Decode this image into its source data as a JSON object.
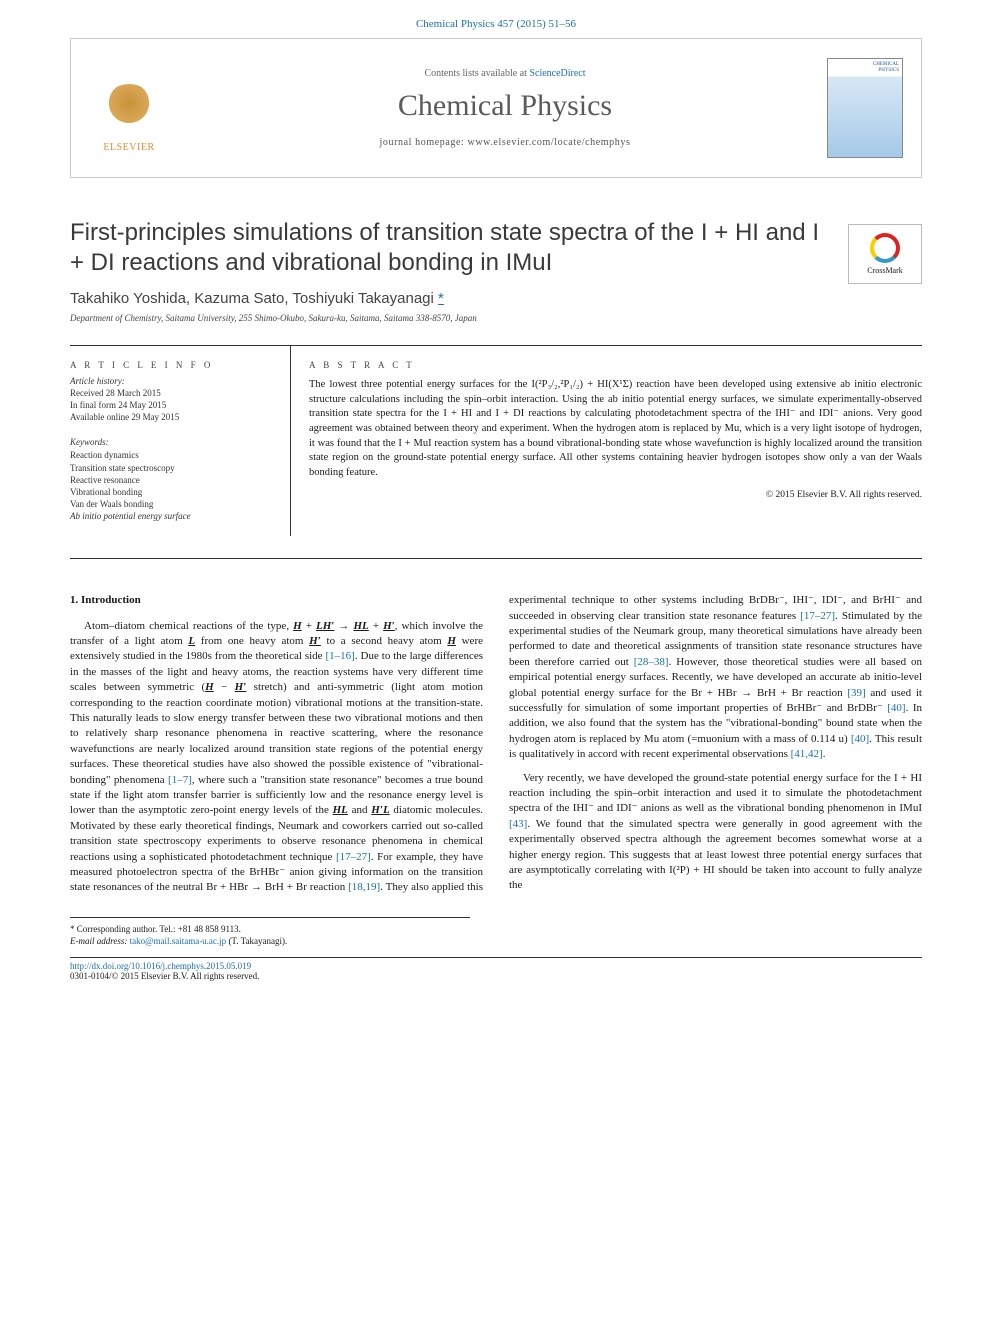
{
  "header": {
    "citation": "Chemical Physics 457 (2015) 51–56",
    "contents_avail": "Contents lists available at ",
    "sciencedirect": "ScienceDirect",
    "journal_name": "Chemical Physics",
    "homepage_label": "journal homepage: ",
    "homepage_url": "www.elsevier.com/locate/chemphys",
    "publisher": "ELSEVIER"
  },
  "article": {
    "title": "First-principles simulations of transition state spectra of the I + HI and I + DI reactions and vibrational bonding in IMuI",
    "crossmark": "CrossMark",
    "authors": "Takahiko Yoshida, Kazuma Sato, Toshiyuki Takayanagi ",
    "corr_mark": "*",
    "affiliation": "Department of Chemistry, Saitama University, 255 Shimo-Okubo, Sakura-ku, Saitama, Saitama 338-8570, Japan"
  },
  "info": {
    "heading": "A R T I C L E   I N F O",
    "history_label": "Article history:",
    "received": "Received 28 March 2015",
    "final": "In final form 24 May 2015",
    "online": "Available online 29 May 2015",
    "keywords_label": "Keywords:",
    "keywords": [
      "Reaction dynamics",
      "Transition state spectroscopy",
      "Reactive resonance",
      "Vibrational bonding",
      "Van der Waals bonding",
      "Ab initio potential energy surface"
    ]
  },
  "abstract": {
    "heading": "A B S T R A C T",
    "text": "The lowest three potential energy surfaces for the I(²P₃/₂,²P₁/₂) + HI(X¹Σ) reaction have been developed using extensive ab initio electronic structure calculations including the spin–orbit interaction. Using the ab initio potential energy surfaces, we simulate experimentally-observed transition state spectra for the I + HI and I + DI reactions by calculating photodetachment spectra of the IHI⁻ and IDI⁻ anions. Very good agreement was obtained between theory and experiment. When the hydrogen atom is replaced by Mu, which is a very light isotope of hydrogen, it was found that the I + MuI reaction system has a bound vibrational-bonding state whose wavefunction is highly localized around the transition state region on the ground-state potential energy surface. All other systems containing heavier hydrogen isotopes show only a van der Waals bonding feature.",
    "copyright": "© 2015 Elsevier B.V. All rights reserved."
  },
  "intro": {
    "heading": "1. Introduction",
    "para1_a": "Atom–diatom chemical reactions of the type, ",
    "para1_b": ", which involve the transfer of a light atom ",
    "para1_c": " from one heavy atom ",
    "para1_d": " to a second heavy atom ",
    "para1_e": " were extensively studied in the 1980s from the theoretical side ",
    "ref1": "[1–16]",
    "para1_f": ". Due to the large differences in the masses of the light and heavy atoms, the reaction systems have very different time scales between symmetric (",
    "para1_g": " stretch) and anti-symmetric (light atom motion corresponding to the reaction coordinate motion) vibrational motions at the transition-state. This naturally leads to slow energy transfer between these two vibrational motions and then to relatively sharp resonance phenomena in reactive scattering, where the resonance wavefunctions are nearly localized around transition state regions of the potential energy surfaces. These theoretical studies have also showed the possible existence of \"vibrational-bonding\" phenomena ",
    "ref2": "[1–7]",
    "para1_h": ", where such a \"transition state resonance\" becomes a true bound state if the light atom transfer barrier is sufficiently low and the resonance energy level is lower than the asymptotic zero-point energy levels of the ",
    "para1_i": " and ",
    "para1_j": " diatomic molecules. Motivated by these early theoretical findings, Neumark and coworkers carried out so-called transition state spectroscopy experiments to observe resonance phenomena in chemical reactions using a sophisticated photodetachment technique ",
    "ref3": "[17–27]",
    "para1_k": ". For example, they have measured photoelectron spectra of the ",
    "para2_a": "BrHBr⁻ anion giving information on the transition state resonances of the neutral Br + HBr → BrH + Br reaction ",
    "ref4": "[18,19]",
    "para2_b": ". They also applied this experimental technique to other systems including BrDBr⁻, IHI⁻, IDI⁻, and BrHI⁻ and succeeded in observing clear transition state resonance features ",
    "ref5": "[17–27]",
    "para2_c": ". Stimulated by the experimental studies of the Neumark group, many theoretical simulations have already been performed to date and theoretical assignments of transition state resonance structures have been therefore carried out ",
    "ref6": "[28–38]",
    "para2_d": ". However, those theoretical studies were all based on empirical potential energy surfaces. Recently, we have developed an accurate ab initio-level global potential energy surface for the Br + HBr → BrH + Br reaction ",
    "ref7": "[39]",
    "para2_e": " and used it successfully for simulation of some important properties of BrHBr⁻ and BrDBr⁻ ",
    "ref8": "[40]",
    "para2_f": ". In addition, we also found that the system has the \"vibrational-bonding\" bound state when the hydrogen atom is replaced by Mu atom (=muonium with a mass of 0.114 u) ",
    "ref9": "[40]",
    "para2_g": ". This result is qualitatively in accord with recent experimental observations ",
    "ref10": "[41,42]",
    "para2_h": ".",
    "para3_a": "Very recently, we have developed the ground-state potential energy surface for the I + HI reaction including the spin–orbit interaction and used it to simulate the photodetachment spectra of the IHI⁻ and IDI⁻ anions as well as the vibrational bonding phenomenon in IMuI ",
    "ref11": "[43]",
    "para3_b": ". We found that the simulated spectra were generally in good agreement with the experimentally observed spectra although the agreement becomes somewhat worse at a higher energy region. This suggests that at least lowest three potential energy surfaces that are asymptotically correlating with I(²P) + HI should be taken into account to fully analyze the"
  },
  "footnotes": {
    "corr": "* Corresponding author. Tel.: +81 48 858 9113.",
    "email_label": "E-mail address: ",
    "email": "tako@mail.saitama-u.ac.jp",
    "email_suffix": " (T. Takayanagi)."
  },
  "bottom": {
    "doi": "http://dx.doi.org/10.1016/j.chemphys.2015.05.019",
    "issn": "0301-0104/© 2015 Elsevier B.V. All rights reserved."
  },
  "colors": {
    "link": "#1a6fb8",
    "text": "#1a1a1a",
    "publisher": "#e98b2e"
  }
}
